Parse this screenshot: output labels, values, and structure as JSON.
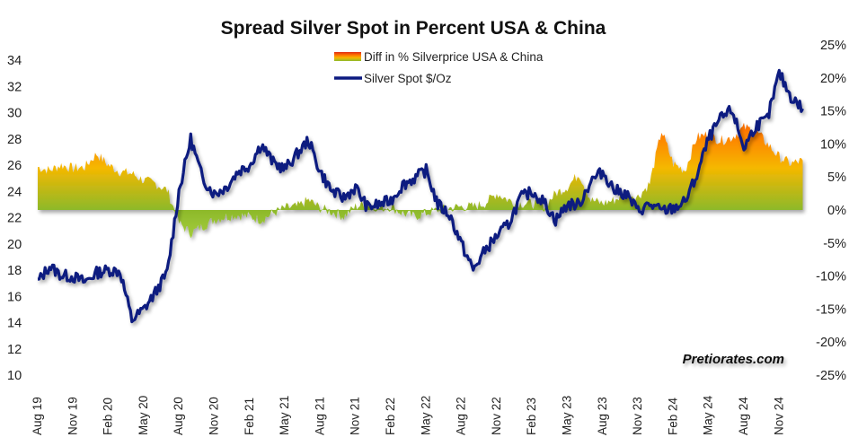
{
  "chart_data": {
    "type": "line",
    "title": "Spread Silver Spot in Percent USA & China",
    "xlabel": "",
    "ylabel": "",
    "legend_position": "top-center",
    "watermark": "Pretiorates.com",
    "colors": {
      "silver_line": "#0c1a80",
      "spread_low": "#8db92a",
      "spread_mid": "#f5b800",
      "spread_high": "#ff6a00",
      "spread_peak": "#e83010"
    },
    "legend": [
      {
        "key": "spread",
        "label": "Diff in % Silverprice USA & China"
      },
      {
        "key": "silver",
        "label": "Silver Spot  $/Oz"
      }
    ],
    "y_left": {
      "min": 10,
      "max": 34,
      "ticks": [
        "10",
        "12",
        "14",
        "16",
        "18",
        "20",
        "22",
        "24",
        "26",
        "28",
        "30",
        "32",
        "34"
      ]
    },
    "y_right": {
      "min": -25,
      "max": 25,
      "ticks": [
        "-25%",
        "-20%",
        "-15%",
        "-10%",
        "-5%",
        "0%",
        "5%",
        "10%",
        "15%",
        "20%",
        "25%"
      ]
    },
    "x_ticks": [
      "Aug 19",
      "Nov 19",
      "Feb 20",
      "May 20",
      "Aug 20",
      "Nov 20",
      "Feb 21",
      "May 21",
      "Aug 21",
      "Nov 21",
      "Feb 22",
      "May 22",
      "Aug 22",
      "Nov 22",
      "Feb 23",
      "May 23",
      "Aug 23",
      "Nov 23",
      "Feb 24",
      "May 24",
      "Aug 24",
      "Nov 24"
    ],
    "x_months_start": "Aug 19",
    "series": [
      {
        "name": "Silver Spot $/Oz",
        "axis": "left",
        "type": "line",
        "values": [
          17.1,
          18.3,
          17.6,
          17.5,
          17.1,
          17.8,
          18.0,
          17.9,
          14.2,
          15.0,
          16.3,
          17.8,
          24.0,
          28.0,
          25.0,
          23.8,
          24.3,
          25.5,
          26.0,
          27.6,
          26.2,
          25.7,
          26.8,
          27.9,
          25.5,
          24.0,
          23.5,
          24.3,
          22.8,
          23.0,
          23.3,
          24.5,
          25.0,
          25.6,
          23.0,
          22.2,
          20.0,
          18.0,
          19.5,
          20.6,
          21.5,
          23.5,
          24.0,
          23.2,
          21.8,
          23.0,
          23.0,
          24.8,
          25.5,
          24.1,
          23.8,
          22.5,
          23.0,
          22.5,
          22.7,
          23.2,
          25.2,
          28.0,
          29.5,
          30.2,
          27.3,
          29.0,
          29.5,
          33.0,
          31.2,
          30.3
        ],
        "note": "monthly approximate closes, Aug 2019 through Nov 2024"
      },
      {
        "name": "Diff in % Silverprice USA & China",
        "axis": "right",
        "type": "area",
        "values": [
          6.5,
          6.0,
          6.8,
          6.3,
          6.5,
          8.5,
          6.8,
          5.8,
          5.5,
          4.5,
          4.0,
          3.0,
          -2.0,
          -3.5,
          -2.5,
          -1.5,
          -1.0,
          -0.8,
          -1.0,
          -1.5,
          -0.5,
          0.3,
          0.5,
          1.5,
          0.3,
          -0.3,
          -1.0,
          0.5,
          1.0,
          0.3,
          0.5,
          -0.5,
          -1.0,
          -0.5,
          0.0,
          0.3,
          0.5,
          0.5,
          1.0,
          2.5,
          1.5,
          1.0,
          1.0,
          0.5,
          2.5,
          3.5,
          5.5,
          1.5,
          1.0,
          1.5,
          2.5,
          2.0,
          4.0,
          12.0,
          7.0,
          6.0,
          11.0,
          11.5,
          10.5,
          11.0,
          12.5,
          12.0,
          10.0,
          8.0,
          7.0,
          7.5
        ],
        "note": "monthly approximate spread %, Aug 2019 through Nov 2024"
      }
    ]
  }
}
